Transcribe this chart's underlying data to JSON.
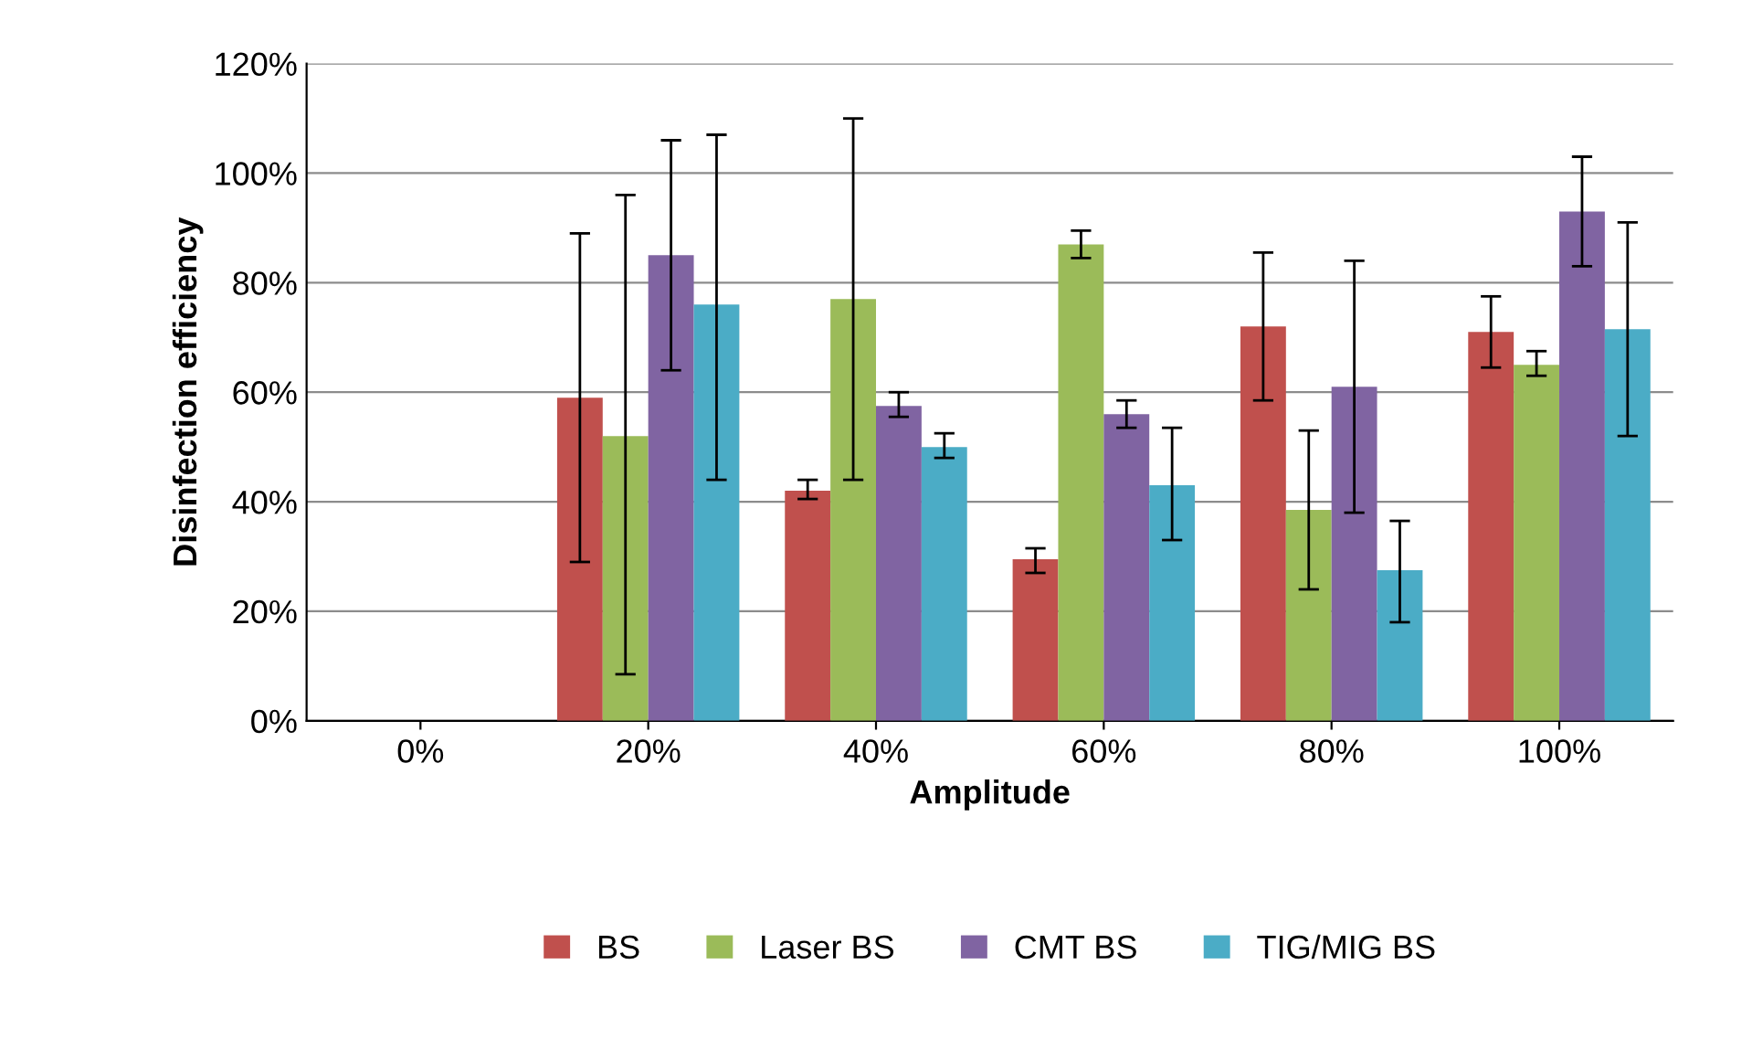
{
  "chart_data": {
    "type": "bar",
    "xlabel": "Amplitude",
    "ylabel": "Disinfection efficiency",
    "categories": [
      "0%",
      "20%",
      "40%",
      "60%",
      "80%",
      "100%"
    ],
    "series": [
      {
        "name": "BS",
        "color": "#c0504d",
        "values": [
          null,
          59,
          42,
          29.5,
          72,
          71
        ],
        "errors": [
          null,
          [
            29,
            89
          ],
          [
            40.5,
            44
          ],
          [
            27,
            31.5
          ],
          [
            58.5,
            85.5
          ],
          [
            64.5,
            77.5
          ]
        ]
      },
      {
        "name": "Laser BS",
        "color": "#9bbb59",
        "values": [
          null,
          52,
          77,
          87,
          38.5,
          65
        ],
        "errors": [
          null,
          [
            8.5,
            96
          ],
          [
            44,
            110
          ],
          [
            84.5,
            89.5
          ],
          [
            24,
            53
          ],
          [
            63,
            67.5
          ]
        ]
      },
      {
        "name": "CMT BS",
        "color": "#8064a2",
        "values": [
          null,
          85,
          57.5,
          56,
          61,
          93
        ],
        "errors": [
          null,
          [
            64,
            106
          ],
          [
            55.5,
            60
          ],
          [
            53.5,
            58.5
          ],
          [
            38,
            84
          ],
          [
            83,
            103
          ]
        ]
      },
      {
        "name": "TIG/MIG BS",
        "color": "#4bacc6",
        "values": [
          null,
          76,
          50,
          43,
          27.5,
          71.5
        ],
        "errors": [
          null,
          [
            44,
            107
          ],
          [
            48,
            52.5
          ],
          [
            33,
            53.5
          ],
          [
            18,
            36.5
          ],
          [
            52,
            91
          ]
        ]
      }
    ],
    "ylim": [
      0,
      120
    ],
    "yticks": [
      {
        "value": 0,
        "label": "0%"
      },
      {
        "value": 20,
        "label": "20%"
      },
      {
        "value": 40,
        "label": "40%"
      },
      {
        "value": 60,
        "label": "60%"
      },
      {
        "value": 80,
        "label": "80%"
      },
      {
        "value": 100,
        "label": "100%"
      },
      {
        "value": 120,
        "label": "120%"
      }
    ],
    "grid": "y",
    "legend": "bottom"
  }
}
